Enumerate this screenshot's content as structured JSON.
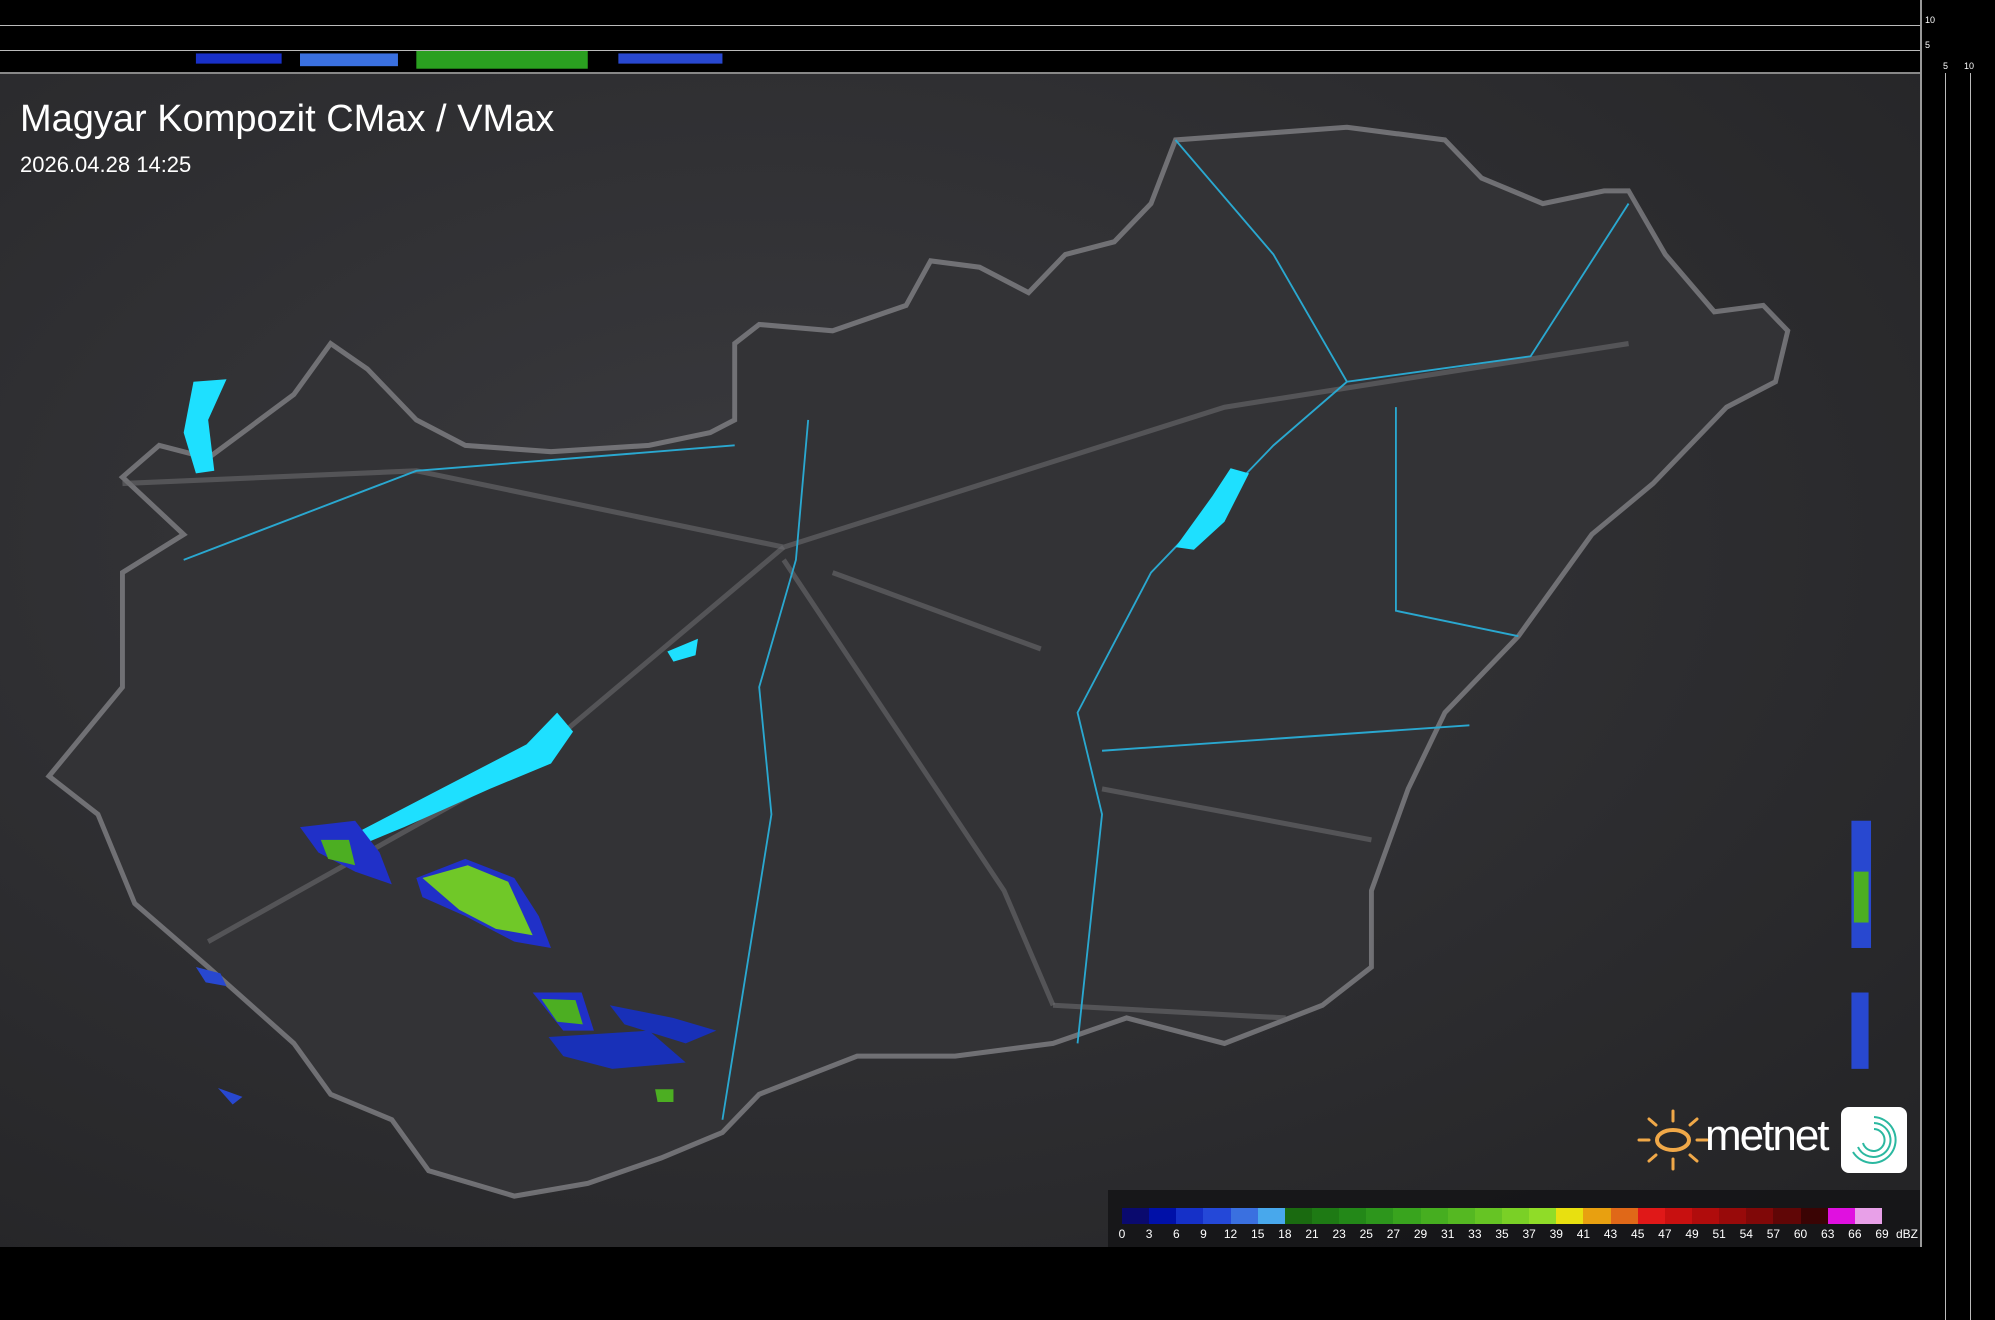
{
  "header": {
    "title": "Magyar Kompozit CMax / VMax",
    "datetime": "2026.04.28 14:25"
  },
  "profile_axes": {
    "top_ticks": [
      "10",
      "5"
    ],
    "right_ticks": [
      "5",
      "10"
    ]
  },
  "logo": {
    "text": "metnet",
    "icon": "sun-icon",
    "app_icon": "spiral-icon"
  },
  "legend": {
    "unit": "dBZ",
    "labels": [
      "0",
      "3",
      "6",
      "9",
      "12",
      "15",
      "18",
      "21",
      "23",
      "25",
      "27",
      "29",
      "31",
      "33",
      "35",
      "37",
      "39",
      "41",
      "43",
      "45",
      "47",
      "49",
      "51",
      "54",
      "57",
      "60",
      "63",
      "66",
      "69"
    ],
    "colors": [
      "#0a0a6e",
      "#0010a8",
      "#1530c8",
      "#2448d8",
      "#3a70e0",
      "#48a8ec",
      "#1a6a10",
      "#1e7a14",
      "#238818",
      "#2d961c",
      "#39a41e",
      "#46ae20",
      "#55b822",
      "#66c424",
      "#7ad026",
      "#90dc28",
      "#e8e010",
      "#e8a010",
      "#e06818",
      "#e01818",
      "#c81010",
      "#b00c0c",
      "#980a0a",
      "#800808",
      "#600606",
      "#3a0404",
      "#e010e0",
      "#e8a0e8",
      "#90e8f0"
    ]
  },
  "colors": {
    "water": "#1ee0ff",
    "border": "#8a8a8e",
    "river": "#2aa8d0",
    "background": "#2e2e31"
  }
}
